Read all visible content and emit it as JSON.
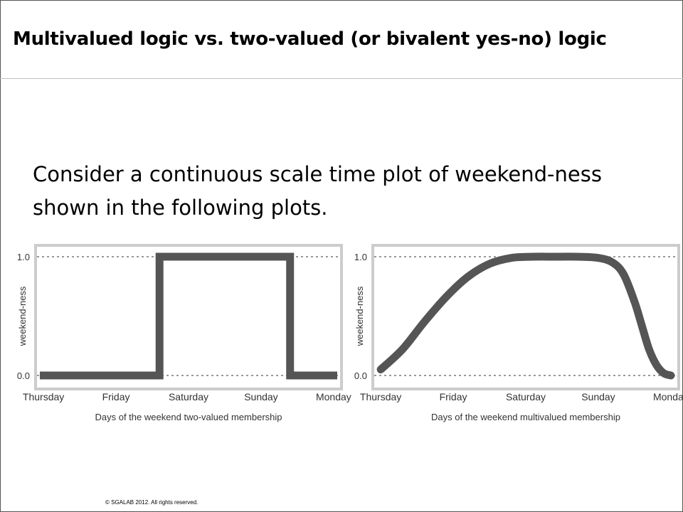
{
  "slide": {
    "title": "Multivalued logic vs. two-valued (or bivalent yes-no) logic",
    "body_line1": "Consider a continuous scale time plot of weekend-ness",
    "body_line2": "shown in the following plots.",
    "footer": "© SGALAB 2012. All rights reserved."
  },
  "chart_data": [
    {
      "type": "line",
      "xlabel": "Days of the weekend two-valued membership",
      "ylabel": "weekend-ness",
      "categories": [
        "Thursday",
        "Friday",
        "Saturday",
        "Sunday",
        "Monday"
      ],
      "yticks": [
        "1.0",
        "0.0"
      ],
      "ylim": [
        0,
        1
      ],
      "xlim": [
        -0.05,
        4.05
      ],
      "grid": "dashed at 0.0 and 1.0",
      "line_color": "#555555",
      "series": [
        {
          "x": [
            -0.05,
            1.6,
            1.6,
            3.4,
            3.4,
            4.05
          ],
          "y": [
            0,
            0,
            1,
            1,
            0,
            0
          ]
        }
      ]
    },
    {
      "type": "line",
      "xlabel": "Days of the weekend multivalued membership",
      "ylabel": "weekend-ness",
      "categories": [
        "Thursday",
        "Friday",
        "Saturday",
        "Sunday",
        "Monday"
      ],
      "yticks": [
        "1.0",
        "0.0"
      ],
      "ylim": [
        0,
        1
      ],
      "xlim": [
        -0.05,
        4.05
      ],
      "grid": "dashed at 0.0 and 1.0",
      "line_color": "#555555",
      "series": [
        {
          "x": [
            0,
            0.3,
            0.6,
            0.9,
            1.2,
            1.5,
            1.8,
            2.1,
            2.4,
            2.7,
            3.0,
            3.2,
            3.35,
            3.5,
            3.6,
            3.7,
            3.8,
            3.9,
            4.0
          ],
          "y": [
            0.05,
            0.22,
            0.45,
            0.66,
            0.83,
            0.94,
            0.99,
            1.0,
            1.0,
            1.0,
            0.99,
            0.95,
            0.85,
            0.62,
            0.42,
            0.22,
            0.09,
            0.02,
            0.0
          ]
        }
      ]
    }
  ]
}
